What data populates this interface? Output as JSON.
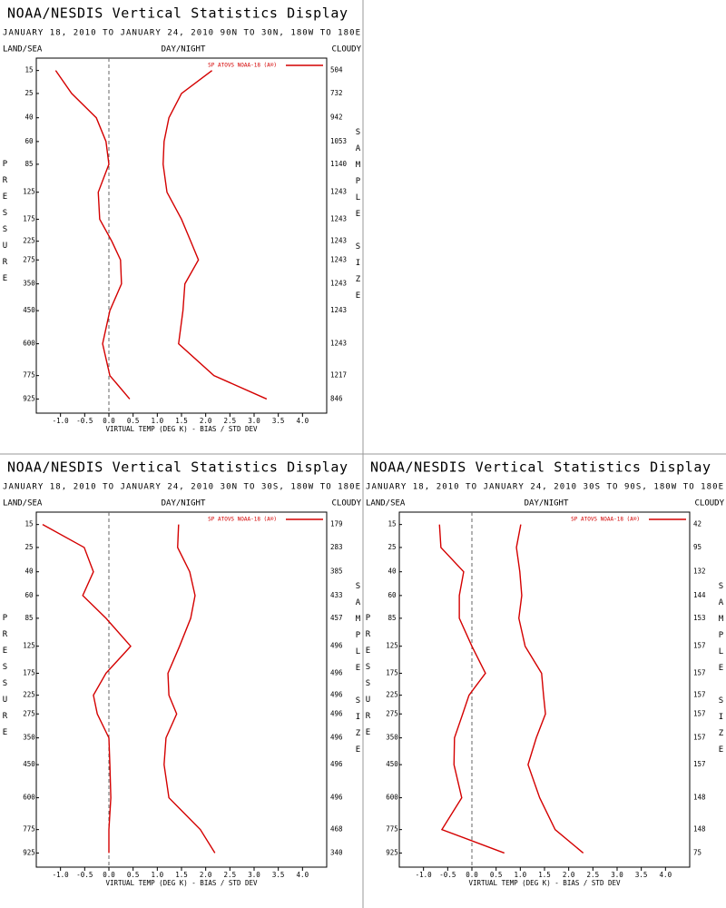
{
  "chart_data": [
    {
      "type": "profile",
      "title": "NOAA/NESDIS Vertical Statistics Display",
      "subtitle": "JANUARY 18, 2010 TO JANUARY 24, 2010  90N TO 30N, 180W TO 180E",
      "left_label": "LAND/SEA",
      "center_label": "DAY/NIGHT",
      "right_label": "CLOUDY",
      "ylabel": "PRESSURE",
      "y2label": "SAMPLE SIZE",
      "xlabel": "VIRTUAL TEMP (DEG K) - BIAS / STD DEV",
      "legend": "upper right",
      "yscale": "power",
      "xlim": [
        -1.5,
        4.5
      ],
      "xticks": [
        {
          "value": -1.0,
          "label": "-1.0"
        },
        -0.5,
        {
          "value": 0.0,
          "label": "0.0"
        },
        0.5,
        {
          "value": 1.0,
          "label": "1.0"
        },
        1.5,
        {
          "value": 2.0,
          "label": "2.0"
        },
        2.5,
        {
          "value": 3.0,
          "label": "3.0"
        },
        3.5,
        {
          "value": 4.0,
          "label": "4.0"
        }
      ],
      "ylim": [
        11,
        1025
      ],
      "y": [
        15,
        25,
        40,
        60,
        85,
        125,
        175,
        225,
        275,
        350,
        450,
        600,
        775,
        925
      ],
      "sample_size": [
        504,
        732,
        942,
        1053,
        1140,
        1243,
        1243,
        1243,
        1243,
        1243,
        1243,
        1243,
        1217,
        846
      ],
      "series": [
        {
          "name": "SP ATOVS NOAA-18 (A®)",
          "color": "#d40000",
          "bias": [
            -1.1,
            -0.77,
            -0.26,
            -0.06,
            0.0,
            -0.22,
            -0.19,
            0.06,
            0.24,
            0.26,
            0.02,
            -0.13,
            0.02,
            0.43
          ],
          "std_dev": [
            2.13,
            1.5,
            1.24,
            1.14,
            1.12,
            1.2,
            1.5,
            1.69,
            1.85,
            1.57,
            1.53,
            1.44,
            2.17,
            3.26
          ]
        }
      ]
    },
    {
      "type": "profile",
      "title": "NOAA/NESDIS Vertical Statistics Display",
      "subtitle": "JANUARY 18, 2010 TO JANUARY 24, 2010  30N TO 30S, 180W TO 180E",
      "left_label": "LAND/SEA",
      "center_label": "DAY/NIGHT",
      "right_label": "CLOUDY",
      "ylabel": "PRESSURE",
      "y2label": "SAMPLE SIZE",
      "xlabel": "VIRTUAL TEMP (DEG K) - BIAS / STD DEV",
      "legend": "upper right",
      "yscale": "power",
      "xlim": [
        -1.5,
        4.5
      ],
      "xticks": [
        {
          "value": -1.0,
          "label": "-1.0"
        },
        -0.5,
        {
          "value": 0.0,
          "label": "0.0"
        },
        0.5,
        {
          "value": 1.0,
          "label": "1.0"
        },
        1.5,
        {
          "value": 2.0,
          "label": "2.0"
        },
        2.5,
        {
          "value": 3.0,
          "label": "3.0"
        },
        3.5,
        {
          "value": 4.0,
          "label": "4.0"
        }
      ],
      "ylim": [
        11,
        1025
      ],
      "y": [
        15,
        25,
        40,
        60,
        85,
        125,
        175,
        225,
        275,
        350,
        450,
        600,
        775,
        925
      ],
      "sample_size": [
        179,
        283,
        385,
        433,
        457,
        496,
        496,
        496,
        496,
        496,
        496,
        496,
        468,
        340
      ],
      "series": [
        {
          "name": "SP ATOVS NOAA-18 (A®)",
          "color": "#d40000",
          "bias": [
            -1.37,
            -0.51,
            -0.32,
            -0.54,
            -0.06,
            0.45,
            -0.06,
            -0.32,
            -0.24,
            0.0,
            0.02,
            0.04,
            0.0,
            0.0
          ],
          "std_dev": [
            1.44,
            1.42,
            1.67,
            1.78,
            1.69,
            1.46,
            1.22,
            1.24,
            1.4,
            1.18,
            1.14,
            1.24,
            1.89,
            2.19
          ]
        }
      ]
    },
    {
      "type": "profile",
      "title": "NOAA/NESDIS Vertical Statistics Display",
      "subtitle": "JANUARY 18, 2010 TO JANUARY 24, 2010  30S TO 90S, 180W TO 180E",
      "left_label": "LAND/SEA",
      "center_label": "DAY/NIGHT",
      "right_label": "CLOUDY",
      "ylabel": "PRESSURE",
      "y2label": "SAMPLE SIZE",
      "xlabel": "VIRTUAL TEMP (DEG K) - BIAS / STD DEV",
      "legend": "upper right",
      "yscale": "power",
      "xlim": [
        -1.5,
        4.5
      ],
      "xticks": [
        {
          "value": -1.0,
          "label": "-1.0"
        },
        -0.5,
        {
          "value": 0.0,
          "label": "0.0"
        },
        0.5,
        {
          "value": 1.0,
          "label": "1.0"
        },
        1.5,
        {
          "value": 2.0,
          "label": "2.0"
        },
        2.5,
        {
          "value": 3.0,
          "label": "3.0"
        },
        3.5,
        {
          "value": 4.0,
          "label": "4.0"
        }
      ],
      "ylim": [
        11,
        1025
      ],
      "y": [
        15,
        25,
        40,
        60,
        85,
        125,
        175,
        225,
        275,
        350,
        450,
        600,
        775,
        925
      ],
      "sample_size": [
        42,
        95,
        132,
        144,
        153,
        157,
        157,
        157,
        157,
        157,
        157,
        148,
        148,
        75
      ],
      "series": [
        {
          "name": "SP ATOVS NOAA-18 (A®)",
          "color": "#d40000",
          "bias": [
            -0.67,
            -0.64,
            -0.17,
            -0.26,
            -0.26,
            0.0,
            0.28,
            -0.06,
            -0.19,
            -0.36,
            -0.37,
            -0.21,
            -0.62,
            0.67
          ],
          "std_dev": [
            1.01,
            0.92,
            0.99,
            1.03,
            0.97,
            1.1,
            1.44,
            1.48,
            1.52,
            1.33,
            1.16,
            1.4,
            1.72,
            2.3
          ]
        }
      ]
    }
  ]
}
